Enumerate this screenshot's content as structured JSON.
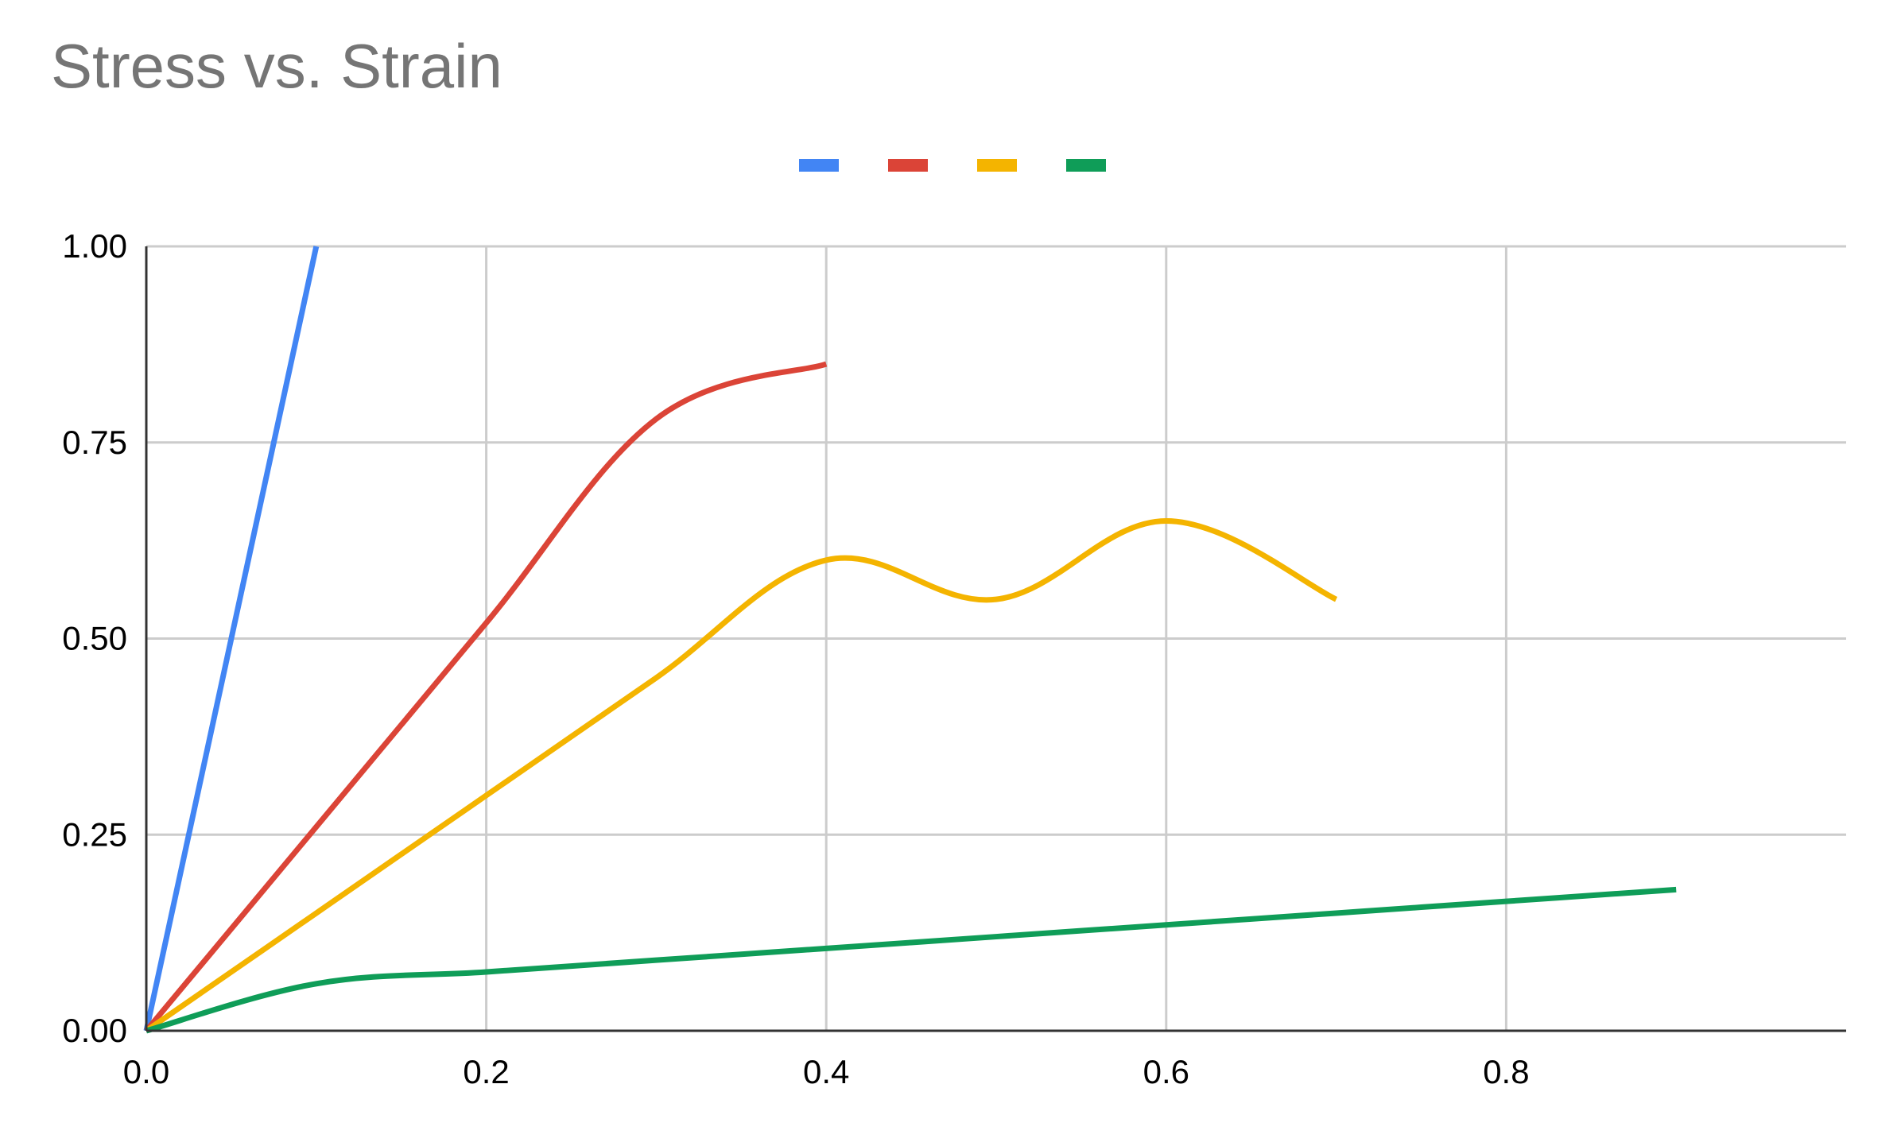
{
  "chart_data": {
    "type": "line",
    "title": "Stress vs. Strain",
    "xlabel": "",
    "ylabel": "",
    "xlim": [
      0,
      1.0
    ],
    "ylim": [
      0,
      1.0
    ],
    "x_ticks": [
      "0.0",
      "0.2",
      "0.4",
      "0.6",
      "0.8"
    ],
    "x_tick_values": [
      0.0,
      0.2,
      0.4,
      0.6,
      0.8
    ],
    "y_ticks": [
      "0.00",
      "0.25",
      "0.50",
      "0.75",
      "1.00"
    ],
    "y_tick_values": [
      0.0,
      0.25,
      0.5,
      0.75,
      1.0
    ],
    "grid": true,
    "legend": "top-center",
    "series": [
      {
        "color": "#4285F4",
        "x": [
          0.0,
          0.1
        ],
        "y": [
          0.0,
          1.0
        ]
      },
      {
        "color": "#DB4437",
        "x": [
          0.0,
          0.1,
          0.2,
          0.3,
          0.4
        ],
        "y": [
          0.0,
          0.26,
          0.52,
          0.78,
          0.85
        ]
      },
      {
        "color": "#F4B400",
        "x": [
          0.0,
          0.1,
          0.2,
          0.3,
          0.4,
          0.5,
          0.6,
          0.7
        ],
        "y": [
          0.0,
          0.15,
          0.3,
          0.45,
          0.6,
          0.55,
          0.65,
          0.55
        ]
      },
      {
        "color": "#0F9D58",
        "x": [
          0.0,
          0.1,
          0.2,
          0.3,
          0.4,
          0.5,
          0.6,
          0.7,
          0.8,
          0.9
        ],
        "y": [
          0.0,
          0.06,
          0.075,
          0.09,
          0.105,
          0.12,
          0.135,
          0.15,
          0.165,
          0.18
        ]
      }
    ]
  }
}
